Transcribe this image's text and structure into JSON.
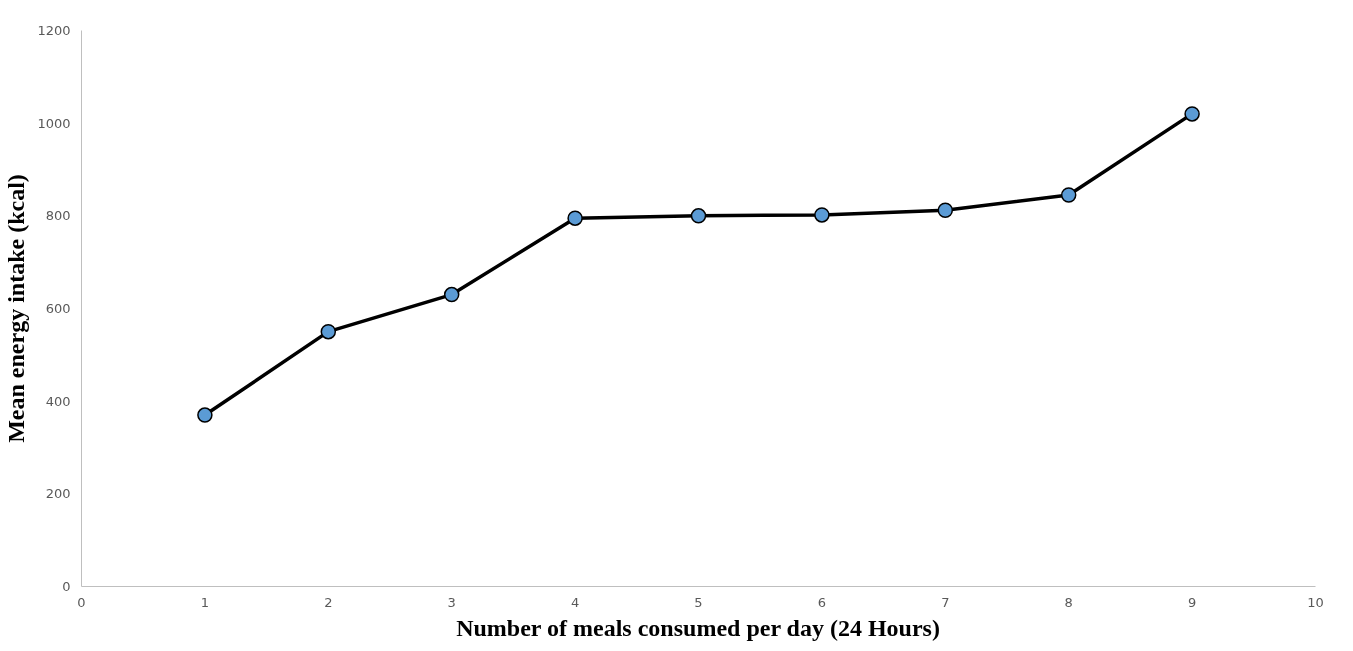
{
  "chart_data": {
    "type": "line",
    "xlabel": "Number of meals consumed per day (24 Hours)",
    "ylabel": "Mean energy intake (kcal)",
    "x": [
      1,
      2,
      3,
      4,
      5,
      6,
      7,
      8,
      9
    ],
    "series": [
      {
        "color": "#000000",
        "values": [
          370,
          550,
          630,
          795,
          800,
          802,
          812,
          845,
          1020
        ]
      }
    ],
    "marker": "circle",
    "line_style": "solid",
    "grid": false,
    "xlim": [
      0,
      10
    ],
    "xticks": [
      0,
      1,
      2,
      3,
      4,
      5,
      6,
      7,
      8,
      9,
      10
    ],
    "ylim": [
      0,
      1200
    ],
    "yticks": [
      0,
      200,
      400,
      600,
      800,
      1000,
      1200
    ]
  }
}
